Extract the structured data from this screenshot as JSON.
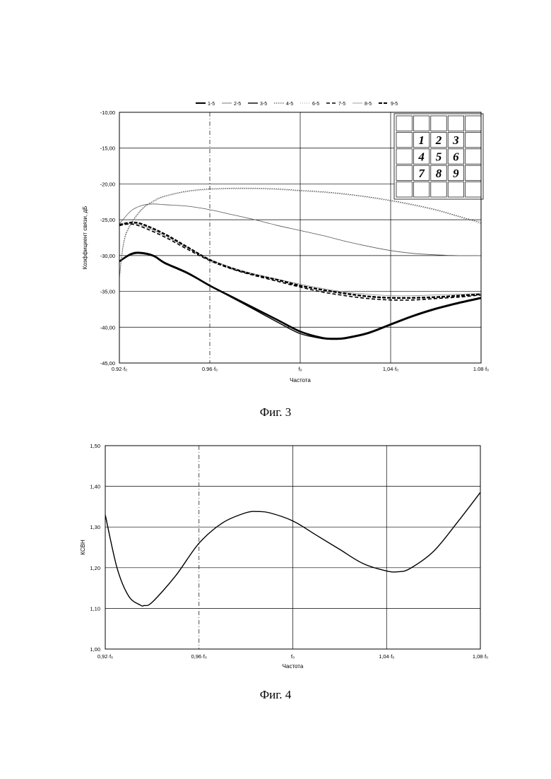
{
  "figures": [
    {
      "caption": "Фиг. 3",
      "chart_data": {
        "type": "line",
        "xlabel": "Частота",
        "ylabel": "Коэффициент связи, дБ",
        "x_tick_labels": [
          "0.92·f₀",
          "0.96·f₀",
          "f₀",
          "1,04·f₀",
          "1.08·f₀"
        ],
        "x_tick_values": [
          0.92,
          0.96,
          1.0,
          1.04,
          1.08
        ],
        "xlim": [
          0.92,
          1.08
        ],
        "y_tick_labels": [
          "-10,00",
          "-15,00",
          "-20,00",
          "-25,00",
          "-30,00",
          "-35,00",
          "-40,00",
          "-45,00"
        ],
        "ylim": [
          -45,
          -10
        ],
        "grid": true,
        "legend_position": "top",
        "inset_matrix": [
          "1",
          "2",
          "3",
          "4",
          "5",
          "6",
          "7",
          "8",
          "9"
        ],
        "series": [
          {
            "name": "1-5",
            "style": "thick",
            "x": [
              0.92,
              0.925,
              0.929,
              0.935,
              0.94,
              0.95,
              0.96,
              0.97,
              0.98,
              0.99,
              1.0,
              1.01,
              1.015,
              1.02,
              1.03,
              1.04,
              1.05,
              1.06,
              1.07,
              1.08
            ],
            "y": [
              -30.8,
              -29.8,
              -29.6,
              -30.0,
              -31.0,
              -32.4,
              -34.2,
              -35.8,
              -37.4,
              -39.0,
              -40.6,
              -41.5,
              -41.6,
              -41.5,
              -40.8,
              -39.6,
              -38.4,
              -37.4,
              -36.6,
              -35.9
            ]
          },
          {
            "name": "2-5",
            "style": "thin",
            "x": [
              0.92,
              0.925,
              0.93,
              0.935,
              0.94,
              0.95,
              0.96,
              0.97,
              0.98,
              0.99,
              1.0,
              1.01,
              1.02,
              1.03,
              1.04,
              1.05,
              1.06,
              1.07,
              1.08
            ],
            "y": [
              -25.6,
              -23.8,
              -23.0,
              -22.8,
              -22.9,
              -23.1,
              -23.6,
              -24.3,
              -25.0,
              -25.8,
              -26.5,
              -27.2,
              -28.0,
              -28.7,
              -29.3,
              -29.7,
              -29.9,
              -30.0,
              -30.0
            ]
          },
          {
            "name": "3-5",
            "style": "medium",
            "x": [
              0.92,
              0.925,
              0.929,
              0.935,
              0.94,
              0.95,
              0.96,
              0.97,
              0.98,
              0.99,
              1.0,
              1.01,
              1.015,
              1.02,
              1.03,
              1.04,
              1.05,
              1.06,
              1.07,
              1.08
            ],
            "y": [
              -30.8,
              -29.9,
              -29.7,
              -30.1,
              -31.1,
              -32.5,
              -34.2,
              -35.9,
              -37.6,
              -39.3,
              -40.9,
              -41.6,
              -41.7,
              -41.6,
              -40.9,
              -39.7,
              -38.5,
              -37.5,
              -36.7,
              -36.0
            ]
          },
          {
            "name": "4-5",
            "style": "dotted",
            "x": [
              0.92,
              0.922,
              0.925,
              0.93,
              0.935,
              0.94,
              0.95,
              0.96,
              0.97,
              0.98,
              0.99,
              1.0,
              1.01,
              1.02,
              1.03,
              1.04,
              1.05,
              1.06,
              1.07,
              1.08
            ],
            "y": [
              -33.0,
              -28.0,
              -25.6,
              -23.5,
              -22.4,
              -21.7,
              -21.0,
              -20.7,
              -20.6,
              -20.6,
              -20.7,
              -20.9,
              -21.1,
              -21.4,
              -21.8,
              -22.3,
              -22.9,
              -23.6,
              -24.5,
              -25.4
            ]
          },
          {
            "name": "6-5",
            "style": "fine-dotted",
            "x": [
              0.92,
              0.922,
              0.925,
              0.93,
              0.935,
              0.94,
              0.95,
              0.96,
              0.97,
              0.98,
              0.99,
              1.0,
              1.01,
              1.02,
              1.03,
              1.04,
              1.05,
              1.06,
              1.07,
              1.08
            ],
            "y": [
              -33.2,
              -28.2,
              -25.8,
              -23.6,
              -22.5,
              -21.8,
              -21.1,
              -20.8,
              -20.7,
              -20.7,
              -20.8,
              -21.0,
              -21.2,
              -21.5,
              -21.9,
              -22.4,
              -23.0,
              -23.7,
              -24.6,
              -25.6
            ]
          },
          {
            "name": "7-5",
            "style": "dashed",
            "x": [
              0.92,
              0.925,
              0.93,
              0.94,
              0.95,
              0.96,
              0.97,
              0.98,
              0.99,
              1.0,
              1.01,
              1.02,
              1.03,
              1.04,
              1.05,
              1.06,
              1.07,
              1.08
            ],
            "y": [
              -25.8,
              -25.6,
              -26.0,
              -27.4,
              -29.1,
              -30.7,
              -31.9,
              -32.8,
              -33.6,
              -34.4,
              -35.1,
              -35.6,
              -36.0,
              -36.2,
              -36.2,
              -36.0,
              -35.8,
              -35.5
            ]
          },
          {
            "name": "8-5",
            "style": "light",
            "x": [
              0.92,
              0.925,
              0.93,
              0.94,
              0.95,
              0.96,
              0.97,
              0.98,
              0.99,
              1.0,
              1.01,
              1.02,
              1.03,
              1.04,
              1.05,
              1.06,
              1.07,
              1.08
            ],
            "y": [
              -25.7,
              -25.5,
              -25.8,
              -27.2,
              -28.9,
              -30.5,
              -31.7,
              -32.6,
              -33.3,
              -34.0,
              -34.6,
              -35.1,
              -35.4,
              -35.6,
              -35.6,
              -35.5,
              -35.4,
              -35.3
            ]
          },
          {
            "name": "9-5",
            "style": "thick-dashed",
            "x": [
              0.92,
              0.925,
              0.93,
              0.94,
              0.95,
              0.96,
              0.97,
              0.98,
              0.99,
              1.0,
              1.01,
              1.02,
              1.03,
              1.04,
              1.05,
              1.06,
              1.07,
              1.08
            ],
            "y": [
              -25.7,
              -25.4,
              -25.6,
              -27.0,
              -28.8,
              -30.6,
              -31.8,
              -32.7,
              -33.4,
              -34.2,
              -34.8,
              -35.3,
              -35.7,
              -35.9,
              -35.9,
              -35.8,
              -35.6,
              -35.4
            ]
          }
        ]
      }
    },
    {
      "caption": "Фиг. 4",
      "chart_data": {
        "type": "line",
        "xlabel": "Частота",
        "ylabel": "КСВН",
        "x_tick_labels": [
          "0,92·f₀",
          "0,96·f₀",
          "f₀",
          "1,04·f₀",
          "1,08·f₀"
        ],
        "x_tick_values": [
          0.92,
          0.96,
          1.0,
          1.04,
          1.08
        ],
        "xlim": [
          0.92,
          1.08
        ],
        "y_tick_labels": [
          "1,50",
          "1,40",
          "1,30",
          "1,20",
          "1,10",
          "1,00"
        ],
        "ylim": [
          1.0,
          1.5
        ],
        "grid": true,
        "series": [
          {
            "x": [
              0.92,
              0.925,
              0.93,
              0.935,
              0.9365,
              0.94,
              0.95,
              0.96,
              0.97,
              0.98,
              0.985,
              0.99,
              1.0,
              1.01,
              1.02,
              1.03,
              1.04,
              1.045,
              1.05,
              1.06,
              1.07,
              1.08
            ],
            "y": [
              1.33,
              1.2,
              1.13,
              1.108,
              1.107,
              1.115,
              1.18,
              1.26,
              1.31,
              1.335,
              1.338,
              1.335,
              1.315,
              1.28,
              1.245,
              1.21,
              1.192,
              1.19,
              1.198,
              1.24,
              1.31,
              1.385
            ]
          }
        ]
      }
    }
  ]
}
